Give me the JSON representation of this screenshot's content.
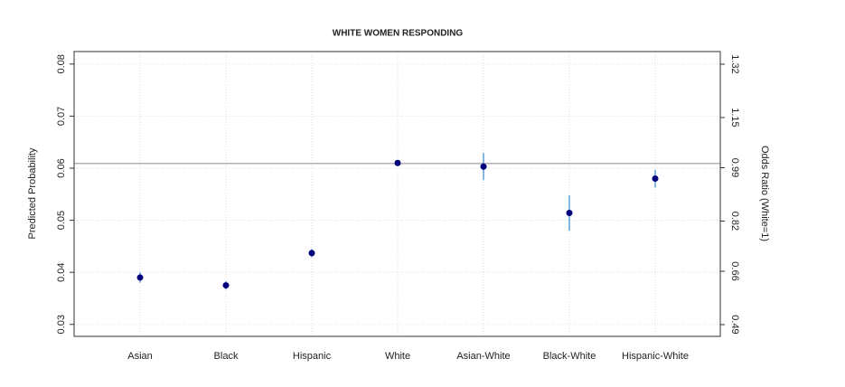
{
  "chart_data": {
    "type": "errorbar",
    "title": "WHITE WOMEN RESPONDING",
    "y_label": "Predicted Probability",
    "y2_label": "Odds Ratio (White=1)",
    "categories": [
      "Asian",
      "Black",
      "Hispanic",
      "White",
      "Asian-White",
      "Black-White",
      "Hispanic-White"
    ],
    "values": [
      0.039,
      0.0375,
      0.0437,
      0.061,
      0.0603,
      0.0514,
      0.058
    ],
    "errors": [
      0.001,
      0.0008,
      0.0008,
      0.0003,
      0.0026,
      0.0034,
      0.0017
    ],
    "color": "#00007a",
    "error_color": "#5a9fd4",
    "reference_line": 0.0609,
    "ylim": [
      0.0277,
      0.0824
    ],
    "yticks": [
      0.03,
      0.04,
      0.05,
      0.06,
      0.07,
      0.08
    ],
    "y2lim": [
      0.4525,
      1.3603
    ],
    "y2ticks": [
      0.49,
      0.66,
      0.82,
      0.99,
      1.15,
      1.32
    ],
    "grid": true
  }
}
